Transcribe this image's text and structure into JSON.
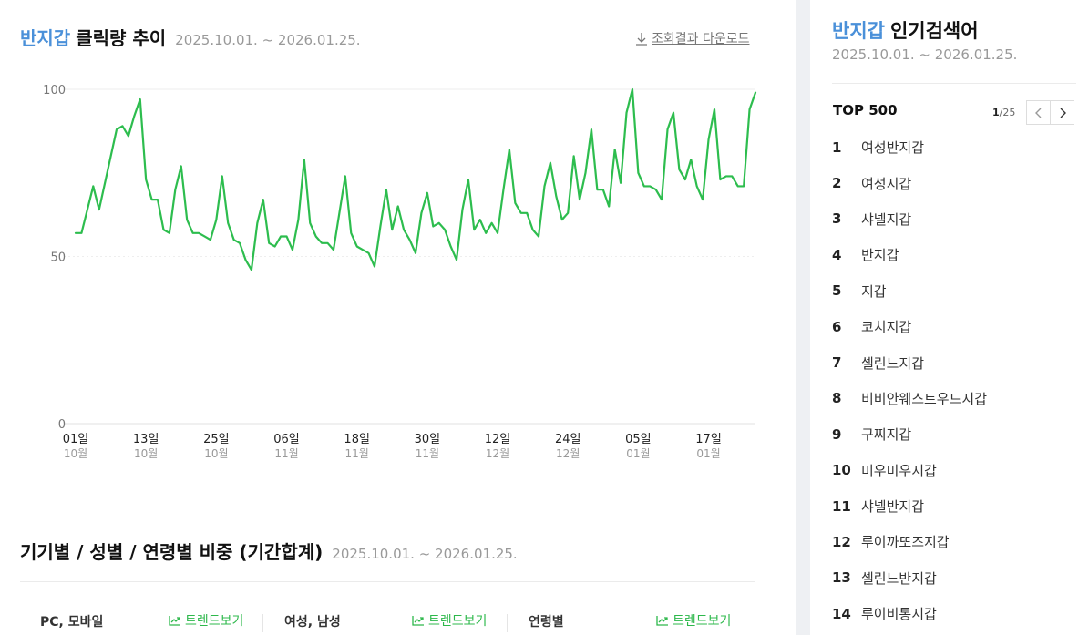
{
  "header": {
    "keyword": "반지갑",
    "title_rest": "클릭량 추이",
    "period": "2025.10.01. ~ 2026.01.25.",
    "download_label": "조회결과 다운로드"
  },
  "colors": {
    "accent": "#4a90d9",
    "line": "#2dbd4e",
    "trend": "#2db84b"
  },
  "chart_data": {
    "type": "line",
    "title": "반지갑 클릭량 추이",
    "ylim": [
      0,
      100
    ],
    "yticks": [
      0,
      50,
      100
    ],
    "grid": true,
    "x_start": "2025-10-01",
    "x_end": "2026-01-25",
    "x_ticks": [
      {
        "day": "01일",
        "month": "10월",
        "date": "2025-10-01"
      },
      {
        "day": "13일",
        "month": "10월",
        "date": "2025-10-13"
      },
      {
        "day": "25일",
        "month": "10월",
        "date": "2025-10-25"
      },
      {
        "day": "06일",
        "month": "11월",
        "date": "2025-11-06"
      },
      {
        "day": "18일",
        "month": "11월",
        "date": "2025-11-18"
      },
      {
        "day": "30일",
        "month": "11월",
        "date": "2025-11-30"
      },
      {
        "day": "12일",
        "month": "12월",
        "date": "2025-12-12"
      },
      {
        "day": "24일",
        "month": "12월",
        "date": "2025-12-24"
      },
      {
        "day": "05일",
        "month": "01월",
        "date": "2026-01-05"
      },
      {
        "day": "17일",
        "month": "01월",
        "date": "2026-01-17"
      }
    ],
    "series": [
      {
        "values": [
          57,
          57,
          64,
          71,
          64,
          72,
          80,
          88,
          89,
          86,
          92,
          97,
          73,
          67,
          67,
          58,
          57,
          70,
          77,
          61,
          57,
          57,
          56,
          55,
          61,
          74,
          60,
          55,
          54,
          49,
          46,
          60,
          67,
          54,
          53,
          56,
          56,
          52,
          61,
          79,
          60,
          56,
          54,
          54,
          52,
          63,
          74,
          57,
          53,
          52,
          51,
          47,
          59,
          70,
          58,
          65,
          58,
          55,
          51,
          63,
          69,
          59,
          60,
          58,
          53,
          49,
          64,
          73,
          58,
          61,
          57,
          60,
          57,
          70,
          82,
          66,
          63,
          63,
          58,
          56,
          71,
          78,
          68,
          61,
          63,
          80,
          67,
          75,
          88,
          70,
          70,
          65,
          82,
          72,
          93,
          100,
          75,
          71,
          71,
          70,
          67,
          88,
          93,
          76,
          73,
          79,
          71,
          67,
          85,
          94,
          73,
          74,
          74,
          71,
          71,
          94,
          99
        ]
      }
    ]
  },
  "section2": {
    "title": "기기별 / 성별 / 연령별 비중 (기간합계)",
    "period": "2025.10.01. ~ 2026.01.25.",
    "tabs": [
      {
        "label": "PC, 모바일",
        "trend_label": "트렌드보기"
      },
      {
        "label": "여성, 남성",
        "trend_label": "트렌드보기"
      },
      {
        "label": "연령별",
        "trend_label": "트렌드보기"
      }
    ]
  },
  "sidebar": {
    "keyword": "반지갑",
    "title_rest": "인기검색어",
    "period": "2025.10.01. ~ 2026.01.25.",
    "top_label": "TOP 500",
    "page_current": "1",
    "page_total": "/25",
    "ranks": [
      {
        "num": "1",
        "label": "여성반지갑"
      },
      {
        "num": "2",
        "label": "여성지갑"
      },
      {
        "num": "3",
        "label": "샤넬지갑"
      },
      {
        "num": "4",
        "label": "반지갑"
      },
      {
        "num": "5",
        "label": "지갑"
      },
      {
        "num": "6",
        "label": "코치지갑"
      },
      {
        "num": "7",
        "label": "셀린느지갑"
      },
      {
        "num": "8",
        "label": "비비안웨스트우드지갑"
      },
      {
        "num": "9",
        "label": "구찌지갑"
      },
      {
        "num": "10",
        "label": "미우미우지갑"
      },
      {
        "num": "11",
        "label": "샤넬반지갑"
      },
      {
        "num": "12",
        "label": "루이까또즈지갑"
      },
      {
        "num": "13",
        "label": "셀린느반지갑"
      },
      {
        "num": "14",
        "label": "루이비통지갑"
      }
    ]
  }
}
